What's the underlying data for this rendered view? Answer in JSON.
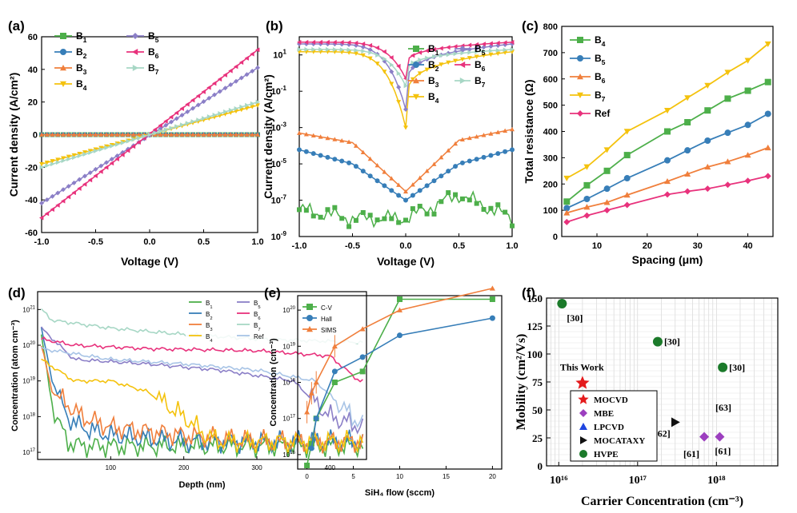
{
  "chart_data": [
    {
      "panel": "(a)",
      "type": "line",
      "xlabel": "Voltage (V)",
      "ylabel": "Current density (A/cm²)",
      "xlim": [
        -1.0,
        1.0
      ],
      "ylim": [
        -60,
        60
      ],
      "xticks": [
        "-1.0",
        "-0.5",
        "0.0",
        "0.5",
        "1.0"
      ],
      "yticks": [
        "-60",
        "-40",
        "-20",
        "0",
        "20",
        "40",
        "60"
      ],
      "legend": "top-left",
      "series": [
        {
          "name": "B₁",
          "color": "#4daf4a",
          "marker": "square",
          "x": [
            -1.0,
            1.0
          ],
          "y": [
            0,
            0
          ]
        },
        {
          "name": "B₂",
          "color": "#377eb8",
          "marker": "circle",
          "x": [
            -1.0,
            1.0
          ],
          "y": [
            0,
            0
          ]
        },
        {
          "name": "B₃",
          "color": "#f07f3c",
          "marker": "triangle",
          "x": [
            -1.0,
            1.0
          ],
          "y": [
            0,
            0
          ]
        },
        {
          "name": "B₄",
          "color": "#f4c20d",
          "marker": "triangle-down",
          "x": [
            -1.0,
            1.0
          ],
          "y": [
            -18,
            18
          ]
        },
        {
          "name": "B₅",
          "color": "#8b7fc7",
          "marker": "diamond",
          "x": [
            -1.0,
            1.0
          ],
          "y": [
            -42,
            41
          ]
        },
        {
          "name": "B₆",
          "color": "#e8327c",
          "marker": "triangle-left",
          "x": [
            -1.0,
            1.0
          ],
          "y": [
            -51,
            52
          ]
        },
        {
          "name": "B₇",
          "color": "#a7d7c5",
          "marker": "triangle-right",
          "x": [
            -1.0,
            1.0
          ],
          "y": [
            -20,
            20
          ]
        }
      ]
    },
    {
      "panel": "(b)",
      "type": "line",
      "xlabel": "Voltage (V)",
      "ylabel": "Current density (A/cm²)",
      "xlim": [
        -1.0,
        1.0
      ],
      "ylim_log10": [
        -9,
        2
      ],
      "scale": "log",
      "xticks": [
        "-1.0",
        "-0.5",
        "0.0",
        "0.5",
        "1.0"
      ],
      "legend": "middle-right",
      "series": [
        {
          "name": "B₁",
          "color": "#4daf4a",
          "marker": "square",
          "x": [
            -1.0,
            -0.5,
            0.0,
            0.5,
            1.0
          ],
          "y": [
            3e-08,
            1e-08,
            1e-08,
            2e-07,
            1e-08
          ]
        },
        {
          "name": "B₂",
          "color": "#377eb8",
          "marker": "circle",
          "x": [
            -1.0,
            -0.5,
            0.0,
            0.5,
            1.0
          ],
          "y": [
            6e-05,
            1e-05,
            1e-07,
            1e-05,
            6e-05
          ]
        },
        {
          "name": "B₃",
          "color": "#f07f3c",
          "marker": "triangle",
          "x": [
            -1.0,
            -0.5,
            0.0,
            0.5,
            1.0
          ],
          "y": [
            0.0005,
            0.00015,
            3e-07,
            0.0002,
            0.0008
          ]
        },
        {
          "name": "B₄",
          "color": "#f4c20d",
          "marker": "triangle-down",
          "x": [
            -1.0,
            0.0,
            1.0
          ],
          "y": [
            15,
            0.001,
            15
          ]
        },
        {
          "name": "B₅",
          "color": "#8b7fc7",
          "marker": "diamond",
          "x": [
            -1.0,
            0.0,
            1.0
          ],
          "y": [
            40,
            0.01,
            40
          ]
        },
        {
          "name": "B₆",
          "color": "#e8327c",
          "marker": "triangle-left",
          "x": [
            -1.0,
            0.0,
            1.0
          ],
          "y": [
            50,
            0.5,
            50
          ]
        },
        {
          "name": "B₇",
          "color": "#a7d7c5",
          "marker": "triangle-right",
          "x": [
            -1.0,
            0.0,
            1.0
          ],
          "y": [
            20,
            0.2,
            20
          ]
        }
      ]
    },
    {
      "panel": "(c)",
      "type": "line",
      "xlabel": "Spacing (μm)",
      "ylabel": "Total resistance (Ω)",
      "xlim": [
        3,
        45
      ],
      "ylim": [
        0,
        800
      ],
      "xticks": [
        "10",
        "20",
        "30",
        "40"
      ],
      "yticks": [
        "0",
        "100",
        "200",
        "300",
        "400",
        "500",
        "600",
        "700",
        "800"
      ],
      "legend": "top-left",
      "x": [
        4,
        8,
        12,
        16,
        24,
        28,
        32,
        36,
        40,
        44
      ],
      "series": [
        {
          "name": "B₄",
          "color": "#4daf4a",
          "marker": "square",
          "values": [
            133,
            195,
            250,
            310,
            400,
            435,
            480,
            525,
            555,
            588
          ]
        },
        {
          "name": "B₅",
          "color": "#377eb8",
          "marker": "circle",
          "values": [
            108,
            143,
            182,
            222,
            290,
            328,
            365,
            395,
            425,
            467
          ]
        },
        {
          "name": "B₆",
          "color": "#f07f3c",
          "marker": "triangle",
          "values": [
            90,
            112,
            130,
            158,
            210,
            238,
            265,
            285,
            310,
            338
          ]
        },
        {
          "name": "B₇",
          "color": "#f4c20d",
          "marker": "triangle-down",
          "values": [
            222,
            265,
            330,
            400,
            480,
            528,
            575,
            625,
            670,
            733
          ]
        },
        {
          "name": "Ref",
          "color": "#e8327c",
          "marker": "diamond",
          "values": [
            55,
            80,
            100,
            120,
            160,
            172,
            182,
            197,
            212,
            230
          ]
        }
      ]
    },
    {
      "panel": "(d)",
      "type": "line",
      "xlabel": "Depth (nm)",
      "ylabel": "Concentration (atom cm⁻³)",
      "xlim": [
        0,
        450
      ],
      "ylim_log10": [
        16.8,
        21.5
      ],
      "scale": "log",
      "xticks": [
        "100",
        "200",
        "300",
        "400"
      ],
      "legend": "top-right",
      "series": [
        {
          "name": "B₁",
          "color": "#4daf4a",
          "x": [
            5,
            20,
            40,
            60,
            100,
            200,
            300,
            445
          ],
          "y": [
            2e+20,
            2e+18,
            2e+17,
            1.5e+17,
            1.5e+17,
            1.5e+17,
            1.5e+17,
            1.5e+17
          ]
        },
        {
          "name": "B₂",
          "color": "#377eb8",
          "x": [
            5,
            20,
            40,
            60,
            100,
            200,
            300,
            445
          ],
          "y": [
            3e+20,
            1e+19,
            1e+18,
            5e+17,
            3e+17,
            2e+17,
            2e+17,
            2e+17
          ]
        },
        {
          "name": "B₃",
          "color": "#f07f3c",
          "x": [
            5,
            20,
            60,
            100,
            200,
            300,
            445
          ],
          "y": [
            1e+20,
            5e+18,
            1e+18,
            5e+17,
            3e+17,
            2e+17,
            2e+17
          ]
        },
        {
          "name": "B₄",
          "color": "#f4c20d",
          "x": [
            5,
            50,
            100,
            150,
            200,
            230,
            250,
            300,
            445
          ],
          "y": [
            4e+19,
            1e+19,
            1e+19,
            5e+18,
            1e+18,
            3e+17,
            2e+17,
            2e+17,
            2e+17
          ]
        },
        {
          "name": "B₅",
          "color": "#8b7fc7",
          "x": [
            5,
            50,
            150,
            250,
            350,
            400,
            445
          ],
          "y": [
            3e+20,
            4e+19,
            3e+19,
            2e+19,
            1e+19,
            1e+18,
            5e+17
          ]
        },
        {
          "name": "B₆",
          "color": "#e8327c",
          "x": [
            5,
            50,
            150,
            300,
            400,
            440,
            445
          ],
          "y": [
            1.5e+20,
            1e+20,
            8e+19,
            7e+19,
            5e+19,
            1e+19,
            1e+19
          ]
        },
        {
          "name": "B₇",
          "color": "#a7d7c5",
          "x": [
            5,
            20,
            100,
            200,
            300,
            445
          ],
          "y": [
            1e+21,
            5e+20,
            3e+20,
            2e+20,
            1.5e+20,
            1.2e+20
          ]
        },
        {
          "name": "Ref",
          "color": "#a8c4e6",
          "x": [
            5,
            100,
            200,
            300,
            380,
            430,
            445
          ],
          "y": [
            8e+19,
            4e+19,
            3e+19,
            2e+19,
            1e+19,
            1e+18,
            6e+17
          ]
        }
      ]
    },
    {
      "panel": "(e)",
      "type": "line",
      "xlabel": "SiH₄ flow (sccm)",
      "ylabel": "Concentration (cm⁻³)",
      "xlim": [
        -1,
        21
      ],
      "ylim_log10": [
        15.6,
        20.4
      ],
      "scale": "log",
      "xticks": [
        "0",
        "5",
        "10",
        "15",
        "20"
      ],
      "legend": "top-left",
      "series": [
        {
          "name": "C-V",
          "color": "#4daf4a",
          "marker": "square",
          "x": [
            0,
            0.5,
            1,
            3,
            6,
            10,
            20
          ],
          "y": [
            5000000000000000.0,
            2e+16,
            1e+17,
            1e+18,
            2e+18,
            2e+20,
            2e+20
          ]
        },
        {
          "name": "Hall",
          "color": "#377eb8",
          "marker": "circle",
          "x": [
            0.5,
            1,
            3,
            6,
            10,
            20
          ],
          "y": [
            1.5e+16,
            1e+17,
            2e+18,
            5e+18,
            2e+19,
            6e+19
          ]
        },
        {
          "name": "SIMS",
          "color": "#f07f3c",
          "marker": "triangle",
          "x": [
            0,
            0.5,
            1,
            3,
            6,
            10,
            20
          ],
          "y": [
            1.5e+17,
            5e+17,
            1e+18,
            1e+19,
            3e+19,
            1e+20,
            4e+20
          ]
        }
      ]
    },
    {
      "panel": "(f)",
      "type": "scatter",
      "xlabel": "Carrier Concentration (cm⁻³)",
      "ylabel": "Mobility (cm²/Vs)",
      "xscale": "log",
      "xlim": [
        7000000000000000.0,
        6e+18
      ],
      "ylim": [
        0,
        150
      ],
      "xticks": [
        "10¹⁶",
        "10¹⁷",
        "10¹⁸"
      ],
      "yticks": [
        "0",
        "25",
        "50",
        "75",
        "100",
        "125",
        "150"
      ],
      "legend": "bottom-left",
      "series": [
        {
          "name": "MOCVD",
          "color": "#e41a1c",
          "marker": "star",
          "points": [
            {
              "x": 2e+16,
              "y": 74,
              "label": "This Work"
            }
          ]
        },
        {
          "name": "MBE",
          "color": "#9c3fbf",
          "marker": "diamond",
          "points": [
            {
              "x": 7e+17,
              "y": 26,
              "label": ""
            },
            {
              "x": 1.1e+18,
              "y": 26,
              "label": "[61]"
            }
          ]
        },
        {
          "name": "LPCVD",
          "color": "#1f45e0",
          "marker": "triangle",
          "points": []
        },
        {
          "name": "MOCATAXY",
          "color": "#111111",
          "marker": "triangle-right",
          "points": [
            {
              "x": 3e+17,
              "y": 39,
              "label": "[62]"
            }
          ]
        },
        {
          "name": "HVPE",
          "color": "#1b7a2a",
          "marker": "circle",
          "points": [
            {
              "x": 1.1e+16,
              "y": 145,
              "label": "[30]"
            },
            {
              "x": 1.8e+17,
              "y": 111,
              "label": "[30]"
            },
            {
              "x": 1.2e+18,
              "y": 88,
              "label": "[30]"
            }
          ]
        }
      ],
      "annotations": [
        "[61]",
        "[63]"
      ]
    }
  ]
}
